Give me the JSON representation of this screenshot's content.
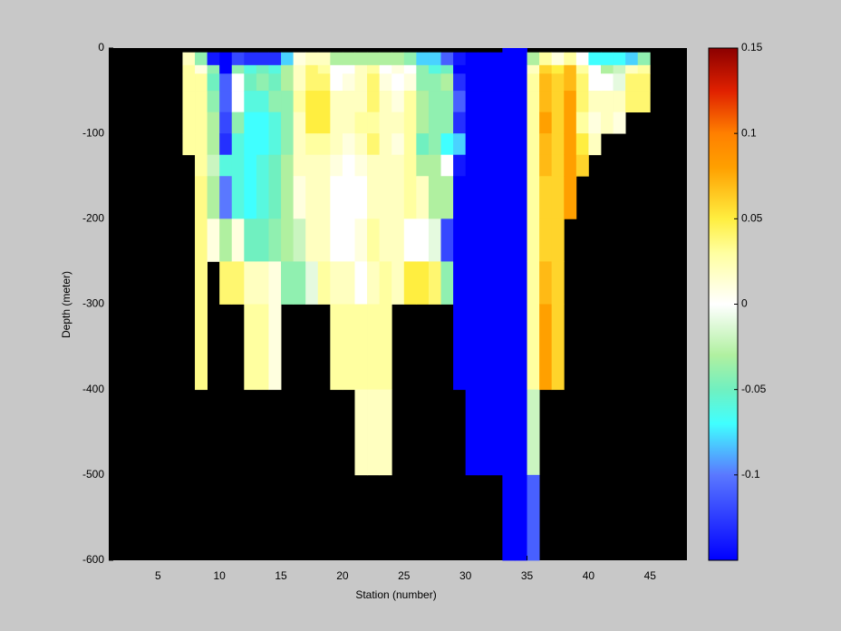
{
  "chart_data": {
    "type": "heatmap",
    "xlabel": "Station (number)",
    "ylabel": "Depth (meter)",
    "xlim": [
      1,
      48
    ],
    "ylim": [
      -600,
      0
    ],
    "xticks": [
      5,
      10,
      15,
      20,
      25,
      30,
      35,
      40,
      45
    ],
    "yticks": [
      0,
      -100,
      -200,
      -300,
      -400,
      -500,
      -600
    ],
    "xbins": [
      1,
      2,
      3,
      4,
      5,
      6,
      7,
      8,
      9,
      10,
      11,
      12,
      13,
      14,
      15,
      16,
      17,
      18,
      19,
      20,
      21,
      22,
      23,
      24,
      25,
      26,
      27,
      28,
      29,
      30,
      31,
      32,
      33,
      34,
      35,
      36,
      37,
      38,
      39,
      40,
      41,
      42,
      43,
      44,
      45,
      46,
      47,
      48
    ],
    "ybins": [
      0,
      -5,
      -20,
      -30,
      -50,
      -75,
      -100,
      -125,
      -150,
      -200,
      -250,
      -300,
      -400,
      -500,
      -600
    ],
    "background": "#000000",
    "clim": [
      -0.15,
      0.15
    ],
    "cticks": [
      -0.1,
      -0.05,
      0,
      0.05,
      0.1,
      0.15
    ],
    "colormap": [
      [
        -0.15,
        "#0000ff"
      ],
      [
        -0.1,
        "#5a78ff"
      ],
      [
        -0.07,
        "#40ffff"
      ],
      [
        -0.05,
        "#70f0c0"
      ],
      [
        -0.03,
        "#b0f0a0"
      ],
      [
        0,
        "#ffffff"
      ],
      [
        0.03,
        "#ffffa0"
      ],
      [
        0.05,
        "#ffee40"
      ],
      [
        0.08,
        "#ffa000"
      ],
      [
        0.1,
        "#ff8000"
      ],
      [
        0.125,
        "#e02000"
      ],
      [
        0.15,
        "#8b0000"
      ]
    ],
    "values": [
      [
        null,
        null,
        null,
        null,
        null,
        null,
        null,
        null,
        null,
        null,
        null,
        null,
        null,
        null
      ],
      [
        null,
        null,
        null,
        null,
        null,
        null,
        null,
        null,
        null,
        null,
        null,
        null,
        null,
        null
      ],
      [
        null,
        null,
        null,
        null,
        null,
        null,
        null,
        null,
        null,
        null,
        null,
        null,
        null,
        null
      ],
      [
        null,
        null,
        null,
        null,
        null,
        null,
        null,
        null,
        null,
        null,
        null,
        null,
        null,
        null
      ],
      [
        null,
        null,
        null,
        null,
        null,
        null,
        null,
        null,
        null,
        null,
        null,
        null,
        null,
        null
      ],
      [
        null,
        null,
        null,
        null,
        null,
        null,
        null,
        null,
        null,
        null,
        null,
        null,
        null,
        null
      ],
      [
        null,
        0.02,
        0.03,
        0.03,
        0.03,
        0.03,
        0.03,
        null,
        null,
        null,
        null,
        null,
        null,
        null
      ],
      [
        null,
        -0.04,
        0.01,
        0.03,
        0.03,
        0.03,
        0.03,
        0.03,
        0.035,
        0.035,
        0.035,
        0.035,
        null,
        null
      ],
      [
        null,
        -0.14,
        -0.04,
        -0.05,
        -0.04,
        -0.03,
        -0.03,
        -0.02,
        -0.03,
        0.01,
        null,
        null,
        null,
        null
      ],
      [
        null,
        -0.15,
        -0.15,
        -0.11,
        -0.11,
        -0.12,
        -0.13,
        -0.06,
        -0.1,
        -0.03,
        0.04,
        null,
        null,
        null
      ],
      [
        null,
        -0.12,
        -0.04,
        0,
        0,
        -0.04,
        -0.06,
        -0.06,
        -0.06,
        0.01,
        0.04,
        null,
        null,
        null
      ],
      [
        null,
        -0.13,
        -0.06,
        -0.05,
        -0.06,
        -0.07,
        -0.07,
        -0.07,
        -0.07,
        -0.05,
        0.02,
        0.03,
        null,
        null
      ],
      [
        null,
        -0.13,
        -0.05,
        -0.04,
        -0.06,
        -0.07,
        -0.07,
        -0.06,
        -0.06,
        -0.05,
        0.02,
        0.03,
        null,
        null
      ],
      [
        null,
        -0.13,
        -0.06,
        -0.05,
        -0.04,
        -0.06,
        -0.06,
        -0.05,
        -0.05,
        -0.04,
        0.01,
        0.01,
        null,
        null
      ],
      [
        null,
        -0.08,
        -0.03,
        -0.03,
        -0.04,
        -0.04,
        -0.04,
        -0.03,
        -0.03,
        -0.03,
        -0.04,
        null,
        null,
        null
      ],
      [
        null,
        0.01,
        0.02,
        0.02,
        0.03,
        0.02,
        0.02,
        0.02,
        0.01,
        -0.02,
        -0.04,
        null,
        null,
        null
      ],
      [
        null,
        0.02,
        0.04,
        0.04,
        0.05,
        0.05,
        0.03,
        0.02,
        0.02,
        0.02,
        -0.01,
        null,
        null,
        null
      ],
      [
        null,
        0.02,
        0.03,
        0.04,
        0.05,
        0.05,
        0.03,
        0.02,
        0.02,
        0.02,
        0.03,
        null,
        null,
        null
      ],
      [
        null,
        -0.03,
        0,
        0,
        0.02,
        0.02,
        0.02,
        0.01,
        0,
        0,
        0.02,
        0.03,
        null,
        null
      ],
      [
        null,
        -0.03,
        0,
        0.01,
        0.02,
        0.02,
        0.01,
        0,
        0,
        0,
        0.02,
        0.03,
        null,
        null
      ],
      [
        null,
        -0.03,
        0.02,
        0.02,
        0.02,
        0.03,
        0.02,
        0.01,
        0,
        0.01,
        0,
        0.03,
        0.02,
        null
      ],
      [
        null,
        -0.03,
        0.03,
        0.04,
        0.04,
        0.03,
        0.04,
        0.02,
        0.02,
        0.03,
        0.02,
        0.03,
        0.02,
        null
      ],
      [
        null,
        -0.03,
        0,
        0.01,
        0.02,
        0.02,
        0.02,
        0.02,
        0.02,
        0.02,
        0.03,
        0.03,
        0.02,
        null
      ],
      [
        null,
        -0.03,
        0.01,
        0,
        0.01,
        0.02,
        0.01,
        0.02,
        0.02,
        0.02,
        0.02,
        null,
        null,
        null
      ],
      [
        null,
        -0.04,
        0,
        0.01,
        0.03,
        0.03,
        0.03,
        0.03,
        0.03,
        0,
        0.05,
        null,
        null,
        null
      ],
      [
        null,
        -0.08,
        -0.04,
        -0.04,
        -0.03,
        -0.03,
        -0.05,
        -0.03,
        0.02,
        0,
        0.05,
        null,
        null,
        null
      ],
      [
        null,
        -0.08,
        -0.06,
        -0.04,
        -0.04,
        -0.04,
        -0.04,
        -0.03,
        -0.03,
        -0.01,
        0.04,
        null,
        null,
        null
      ],
      [
        null,
        -0.11,
        -0.05,
        -0.03,
        -0.04,
        -0.04,
        -0.07,
        0,
        -0.03,
        -0.12,
        -0.04,
        null,
        null,
        null
      ],
      [
        null,
        -0.14,
        -0.15,
        -0.13,
        -0.11,
        -0.13,
        -0.08,
        -0.14,
        -0.15,
        -0.15,
        -0.15,
        -0.15,
        null,
        null
      ],
      [
        null,
        -0.15,
        -0.15,
        -0.15,
        -0.15,
        -0.15,
        -0.15,
        -0.15,
        -0.15,
        -0.15,
        -0.15,
        -0.15,
        -0.15,
        null
      ],
      [
        null,
        -0.15,
        -0.15,
        -0.15,
        -0.15,
        -0.15,
        -0.15,
        -0.15,
        -0.15,
        -0.15,
        -0.15,
        -0.15,
        -0.15,
        null
      ],
      [
        null,
        -0.15,
        -0.15,
        -0.15,
        -0.15,
        -0.15,
        -0.15,
        -0.15,
        -0.15,
        -0.15,
        -0.15,
        -0.15,
        -0.15,
        null
      ],
      [
        -0.15,
        -0.15,
        -0.15,
        -0.15,
        -0.15,
        -0.15,
        -0.15,
        -0.15,
        -0.15,
        -0.15,
        -0.15,
        -0.15,
        -0.15,
        -0.15
      ],
      [
        -0.15,
        -0.15,
        -0.15,
        -0.15,
        -0.15,
        -0.15,
        -0.15,
        -0.15,
        -0.15,
        -0.15,
        -0.15,
        -0.15,
        -0.15,
        -0.15
      ],
      [
        null,
        -0.03,
        0.02,
        0.03,
        0.03,
        0.03,
        0.03,
        0.03,
        0.03,
        0.03,
        0.03,
        0.03,
        -0.02,
        -0.11
      ],
      [
        null,
        0.03,
        0.06,
        0.07,
        0.07,
        0.08,
        0.07,
        0.07,
        0.06,
        0.06,
        0.07,
        0.08,
        null,
        null
      ],
      [
        null,
        0.01,
        0.05,
        0.06,
        0.06,
        0.06,
        0.06,
        0.06,
        0.06,
        0.06,
        0.06,
        0.06,
        null,
        null
      ],
      [
        null,
        0.03,
        0.07,
        0.07,
        0.08,
        0.08,
        0.08,
        0.08,
        0.08,
        null,
        null,
        null,
        null,
        null
      ],
      [
        null,
        0,
        0.03,
        0.04,
        0.04,
        0.03,
        0.05,
        0.06,
        null,
        null,
        null,
        null,
        null,
        null
      ],
      [
        null,
        -0.07,
        0,
        0,
        0.02,
        0.01,
        0.02,
        null,
        null,
        null,
        null,
        null,
        null,
        null
      ],
      [
        null,
        -0.07,
        -0.03,
        0,
        0.02,
        0.02,
        null,
        null,
        null,
        null,
        null,
        null,
        null,
        null
      ],
      [
        null,
        -0.07,
        -0.02,
        -0.01,
        0.02,
        0.01,
        null,
        null,
        null,
        null,
        null,
        null,
        null,
        null
      ],
      [
        null,
        -0.08,
        0.02,
        0.04,
        0.04,
        null,
        null,
        null,
        null,
        null,
        null,
        null,
        null,
        null
      ],
      [
        null,
        -0.04,
        0.03,
        0.04,
        0.04,
        null,
        null,
        null,
        null,
        null,
        null,
        null,
        null,
        null
      ],
      [
        null,
        null,
        null,
        null,
        null,
        null,
        null,
        null,
        null,
        null,
        null,
        null,
        null,
        null
      ],
      [
        null,
        null,
        null,
        null,
        null,
        null,
        null,
        null,
        null,
        null,
        null,
        null,
        null,
        null
      ],
      [
        null,
        null,
        null,
        null,
        null,
        null,
        null,
        null,
        null,
        null,
        null,
        null,
        null,
        null
      ]
    ]
  }
}
